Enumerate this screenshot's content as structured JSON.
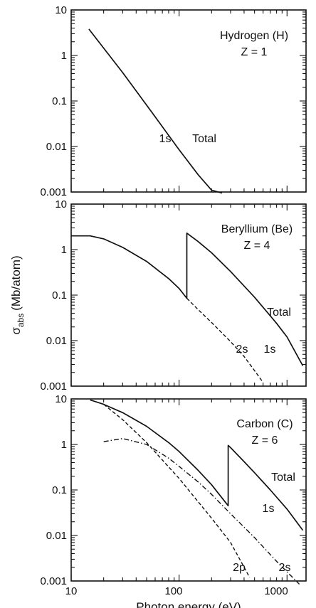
{
  "ylabel_main": "σ",
  "ylabel_sub": "abs",
  "ylabel_unit": "(Mb/atom)",
  "xlabel": "Photon energy (eV)",
  "chart_data": [
    {
      "type": "line",
      "xscale": "log",
      "yscale": "log",
      "xlim": [
        10,
        1500
      ],
      "ylim": [
        0.001,
        10
      ],
      "x_ticks": [
        "10",
        "100",
        "1000"
      ],
      "y_ticks": [
        "0.001",
        "0.01",
        "0.1",
        "1",
        "10"
      ],
      "annotations": [
        "Hydrogen (H)",
        "Z = 1",
        "1s",
        "Total"
      ],
      "series": [
        {
          "name": "Total",
          "style": "solid",
          "x": [
            14.6,
            30,
            60,
            100,
            150,
            200,
            250
          ],
          "y": [
            3.8,
            0.42,
            0.045,
            0.0085,
            0.0024,
            0.0011,
            0.00095
          ]
        }
      ]
    },
    {
      "type": "line",
      "xscale": "log",
      "yscale": "log",
      "xlim": [
        10,
        1500
      ],
      "ylim": [
        0.001,
        10
      ],
      "x_ticks": [
        "10",
        "100",
        "1000"
      ],
      "y_ticks": [
        "0.001",
        "0.01",
        "0.1",
        "1",
        "10"
      ],
      "annotations": [
        "Beryllium (Be)",
        "Z = 4",
        "Total",
        "2s",
        "1s"
      ],
      "series": [
        {
          "name": "Total",
          "style": "solid",
          "x": [
            10,
            15,
            20,
            30,
            50,
            80,
            100,
            118,
            118,
            150,
            200,
            300,
            500,
            800,
            1000,
            1400
          ],
          "y": [
            2.0,
            2.0,
            1.72,
            1.12,
            0.55,
            0.23,
            0.14,
            0.085,
            2.3,
            1.5,
            0.85,
            0.33,
            0.09,
            0.024,
            0.012,
            0.0028
          ]
        },
        {
          "name": "2s",
          "style": "dash",
          "x": [
            118,
            150,
            200,
            300,
            400,
            500,
            600
          ],
          "y": [
            0.085,
            0.048,
            0.025,
            0.0095,
            0.0045,
            0.0022,
            0.0012
          ]
        }
      ]
    },
    {
      "type": "line",
      "xscale": "log",
      "yscale": "log",
      "xlim": [
        10,
        1500
      ],
      "ylim": [
        0.001,
        10
      ],
      "x_ticks": [
        "10",
        "100",
        "1000"
      ],
      "y_ticks": [
        "0.001",
        "0.01",
        "0.1",
        "1",
        "10"
      ],
      "annotations": [
        "Carbon (C)",
        "Z = 6",
        "Total",
        "1s",
        "2p",
        "2s"
      ],
      "series": [
        {
          "name": "Total",
          "style": "solid",
          "x": [
            15,
            20,
            30,
            50,
            80,
            100,
            150,
            200,
            285,
            285,
            300,
            400,
            500,
            700,
            1000,
            1400
          ],
          "y": [
            9.5,
            7.6,
            5.0,
            2.5,
            1.1,
            0.7,
            0.27,
            0.13,
            0.045,
            0.95,
            0.85,
            0.42,
            0.24,
            0.1,
            0.038,
            0.013
          ]
        },
        {
          "name": "2p",
          "style": "dash",
          "x": [
            20,
            30,
            50,
            80,
            100,
            150,
            200,
            300,
            450
          ],
          "y": [
            7.6,
            3.5,
            1.1,
            0.32,
            0.18,
            0.055,
            0.024,
            0.007,
            0.0012
          ]
        },
        {
          "name": "2s",
          "style": "dashdot",
          "x": [
            20,
            30,
            50,
            80,
            100,
            150,
            200,
            300,
            500,
            800,
            1300
          ],
          "y": [
            1.15,
            1.35,
            1.0,
            0.5,
            0.33,
            0.15,
            0.08,
            0.03,
            0.009,
            0.0027,
            0.00085
          ]
        }
      ]
    }
  ]
}
